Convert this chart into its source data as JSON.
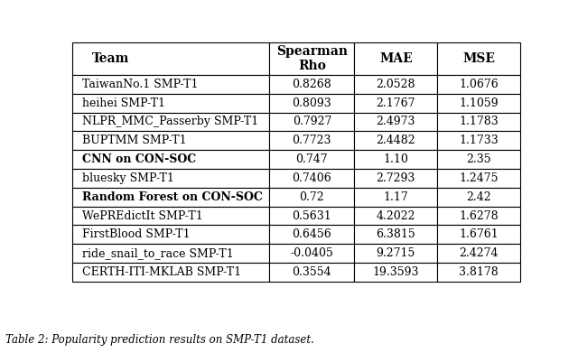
{
  "columns": [
    "Team",
    "Spearman\nRho",
    "MAE",
    "MSE"
  ],
  "rows": [
    [
      "TaiwanNo.1 SMP-T1",
      "0.8268",
      "2.0528",
      "1.0676"
    ],
    [
      "heihei SMP-T1",
      "0.8093",
      "2.1767",
      "1.1059"
    ],
    [
      "NLPR_MMC_Passerby SMP-T1",
      "0.7927",
      "2.4973",
      "1.1783"
    ],
    [
      "BUPTMM SMP-T1",
      "0.7723",
      "2.4482",
      "1.1733"
    ],
    [
      "CNN on CON-SOC",
      "0.747",
      "1.10",
      "2.35"
    ],
    [
      "bluesky SMP-T1",
      "0.7406",
      "2.7293",
      "1.2475"
    ],
    [
      "Random Forest on CON-SOC",
      "0.72",
      "1.17",
      "2.42"
    ],
    [
      "WePREdictIt SMP-T1",
      "0.5631",
      "4.2022",
      "1.6278"
    ],
    [
      "FirstBlood SMP-T1",
      "0.6456",
      "6.3815",
      "1.6761"
    ],
    [
      "ride_snail_to_race SMP-T1",
      "-0.0405",
      "9.2715",
      "2.4274"
    ],
    [
      "CERTH-ITI-MKLAB SMP-T1",
      "0.3554",
      "19.3593",
      "3.8178"
    ]
  ],
  "bold_rows": [
    4,
    6
  ],
  "caption": "Table 2: Popularity prediction results on SMP-T1 dataset.",
  "background_color": "#ffffff",
  "text_color": "#000000",
  "font_size": 9.0,
  "header_font_size": 10.0,
  "caption_font_size": 8.5
}
